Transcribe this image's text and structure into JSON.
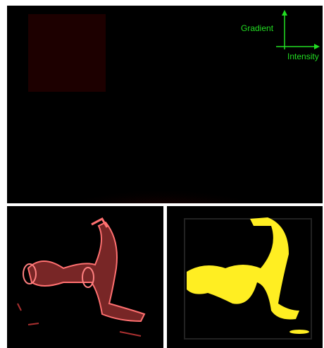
{
  "histogram": {
    "y_axis_label": "Gradient",
    "x_axis_label": "Intensity"
  }
}
